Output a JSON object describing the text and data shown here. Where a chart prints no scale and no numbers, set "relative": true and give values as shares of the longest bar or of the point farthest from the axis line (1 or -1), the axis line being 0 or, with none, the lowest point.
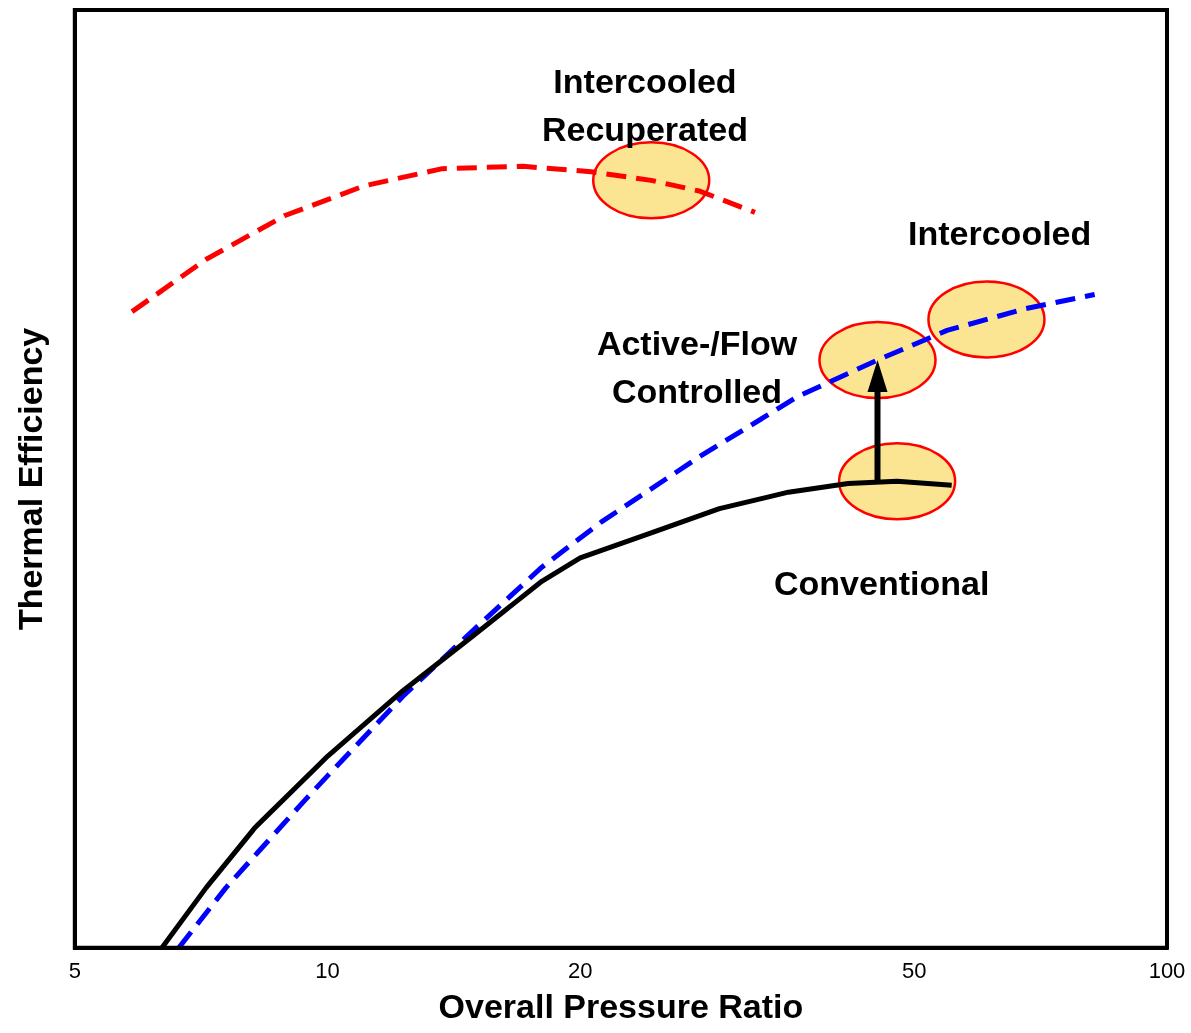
{
  "chart_data": {
    "type": "line",
    "relative": true,
    "log": "x",
    "xlabel": "Overall Pressure Ratio",
    "ylabel": "Thermal Efficiency",
    "xlim": [
      5,
      100
    ],
    "xticks": [
      5,
      10,
      20,
      50,
      100
    ],
    "grid": false,
    "legend": false,
    "marker": "none",
    "series": [
      {
        "name": "Conventional",
        "color": "#000000",
        "line_style": "solid",
        "x": [
          6.35,
          7.17,
          8.2,
          10,
          12.3,
          14.9,
          18,
          20,
          24.3,
          29.3,
          35.4,
          41.7,
          47.7,
          55.4
        ],
        "values": [
          0,
          0.077,
          0.154,
          0.245,
          0.329,
          0.399,
          0.469,
          0.499,
          0.531,
          0.562,
          0.583,
          0.594,
          0.597,
          0.592
        ]
      },
      {
        "name": "Intercooled",
        "color": "#0000ff",
        "line_style": "dashed",
        "x": [
          6.65,
          7.57,
          9.4,
          10,
          12.3,
          14.9,
          18,
          21.2,
          27.8,
          36.4,
          45.2,
          54.7,
          67.9,
          82
        ],
        "values": [
          0,
          0.077,
          0.189,
          0.22,
          0.322,
          0.406,
          0.487,
          0.545,
          0.629,
          0.706,
          0.752,
          0.79,
          0.818,
          0.836
        ]
      },
      {
        "name": "Intercooled Recuperated",
        "color": "#ff0000",
        "line_style": "dashed",
        "x": [
          5.85,
          7.17,
          8.9,
          11.06,
          13.7,
          17.1,
          20.6,
          24.3,
          27.8,
          32.3
        ],
        "values": [
          0.814,
          0.881,
          0.937,
          0.975,
          0.997,
          1.0,
          0.993,
          0.982,
          0.968,
          0.941
        ]
      }
    ],
    "annotations": [
      "Active-/Flow Controlled"
    ]
  }
}
